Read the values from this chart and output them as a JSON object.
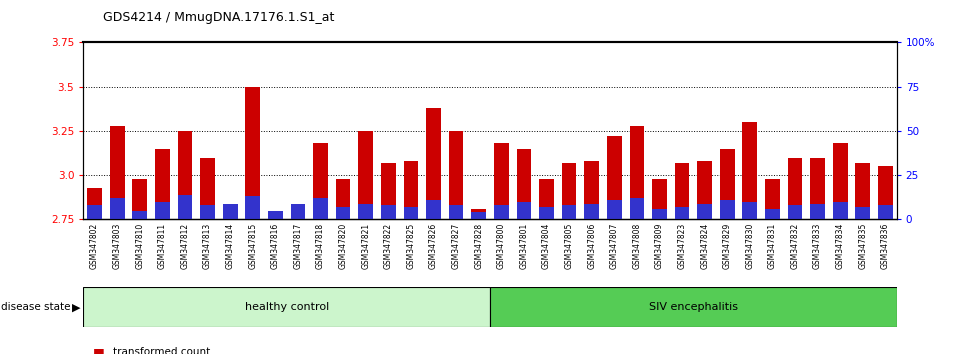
{
  "title": "GDS4214 / MmugDNA.17176.1.S1_at",
  "samples": [
    "GSM347802",
    "GSM347803",
    "GSM347810",
    "GSM347811",
    "GSM347812",
    "GSM347813",
    "GSM347814",
    "GSM347815",
    "GSM347816",
    "GSM347817",
    "GSM347818",
    "GSM347820",
    "GSM347821",
    "GSM347822",
    "GSM347825",
    "GSM347826",
    "GSM347827",
    "GSM347828",
    "GSM347800",
    "GSM347801",
    "GSM347804",
    "GSM347805",
    "GSM347806",
    "GSM347807",
    "GSM347808",
    "GSM347809",
    "GSM347823",
    "GSM347824",
    "GSM347829",
    "GSM347830",
    "GSM347831",
    "GSM347832",
    "GSM347833",
    "GSM347834",
    "GSM347835",
    "GSM347836"
  ],
  "transformed_count": [
    2.93,
    3.28,
    2.98,
    3.15,
    3.25,
    3.1,
    2.84,
    3.5,
    2.75,
    2.84,
    3.18,
    2.98,
    3.25,
    3.07,
    3.08,
    3.38,
    3.25,
    2.81,
    3.18,
    3.15,
    2.98,
    3.07,
    3.08,
    3.22,
    3.28,
    2.98,
    3.07,
    3.08,
    3.15,
    3.3,
    2.98,
    3.1,
    3.1,
    3.18,
    3.07,
    3.05
  ],
  "percentile_rank_pct": [
    8,
    12,
    5,
    10,
    14,
    8,
    9,
    13,
    5,
    9,
    12,
    7,
    9,
    8,
    7,
    11,
    8,
    4,
    8,
    10,
    7,
    8,
    9,
    11,
    12,
    6,
    7,
    9,
    11,
    10,
    6,
    8,
    9,
    10,
    7,
    8
  ],
  "healthy_control_count": 18,
  "siv_count": 18,
  "ymin": 2.75,
  "ymax": 3.75,
  "yticks_left": [
    2.75,
    3.0,
    3.25,
    3.5,
    3.75
  ],
  "yticks_right_pct": [
    0,
    25,
    50,
    75,
    100
  ],
  "yticks_right_labels": [
    "0",
    "25",
    "50",
    "75",
    "100%"
  ],
  "bar_color_red": "#cc0000",
  "bar_color_blue": "#3333cc",
  "healthy_color": "#ccf5cc",
  "siv_color": "#55cc55",
  "xtick_bg": "#cccccc"
}
